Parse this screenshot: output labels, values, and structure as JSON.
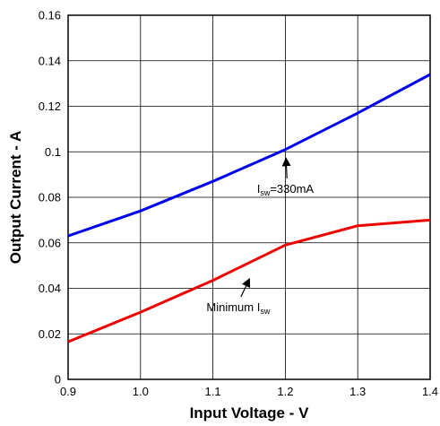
{
  "chart_data": {
    "type": "line",
    "title": "",
    "xlabel": "Input Voltage - V",
    "ylabel": "Output Current - A",
    "xlim": [
      0.9,
      1.4
    ],
    "ylim": [
      0,
      0.16
    ],
    "x_ticks": [
      "0.9",
      "1.0",
      "1.1",
      "1.2",
      "1.3",
      "1.4"
    ],
    "x_tick_values": [
      0.9,
      1.0,
      1.1,
      1.2,
      1.3,
      1.4
    ],
    "y_ticks": [
      "0",
      "0.02",
      "0.04",
      "0.06",
      "0.08",
      "0.1",
      "0.12",
      "0.14",
      "0.16"
    ],
    "y_tick_values": [
      0,
      0.02,
      0.04,
      0.06,
      0.08,
      0.1,
      0.12,
      0.14,
      0.16
    ],
    "grid": true,
    "series": [
      {
        "color": "#0000ee",
        "x": [
          0.9,
          1.0,
          1.1,
          1.2,
          1.3,
          1.4
        ],
        "y": [
          0.063,
          0.074,
          0.087,
          0.101,
          0.117,
          0.134
        ]
      },
      {
        "color": "#ee0000",
        "x": [
          0.9,
          1.0,
          1.1,
          1.2,
          1.3,
          1.4
        ],
        "y": [
          0.0165,
          0.0295,
          0.0435,
          0.059,
          0.0675,
          0.07
        ]
      }
    ],
    "annotations": [
      {
        "text_main": "I",
        "text_sub": "sw",
        "text_after": "=330mA",
        "target": {
          "x": 1.201,
          "y": 0.1
        },
        "label_pos": {
          "x": 1.2,
          "y": 0.082
        }
      },
      {
        "text_main": "Minimum I",
        "text_sub": "sw",
        "text_after": "",
        "target": {
          "x": 1.15,
          "y": 0.047
        },
        "label_pos": {
          "x": 1.135,
          "y": 0.03
        }
      }
    ]
  }
}
